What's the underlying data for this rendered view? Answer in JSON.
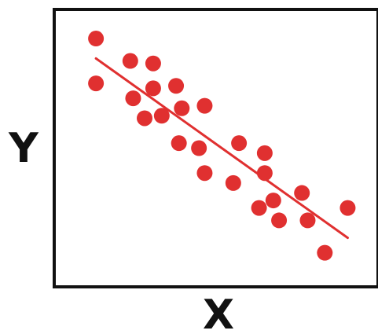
{
  "chart_data": {
    "type": "scatter",
    "title": "",
    "xlabel": "X",
    "ylabel": "Y",
    "xlim": [
      0,
      100
    ],
    "ylim": [
      0,
      100
    ],
    "grid": false,
    "points": [
      {
        "x": 8,
        "y": 94
      },
      {
        "x": 8,
        "y": 76
      },
      {
        "x": 20,
        "y": 85
      },
      {
        "x": 28,
        "y": 84
      },
      {
        "x": 28,
        "y": 74
      },
      {
        "x": 36,
        "y": 75
      },
      {
        "x": 21,
        "y": 70
      },
      {
        "x": 38,
        "y": 66
      },
      {
        "x": 46,
        "y": 67
      },
      {
        "x": 25,
        "y": 62
      },
      {
        "x": 31,
        "y": 63
      },
      {
        "x": 37,
        "y": 52
      },
      {
        "x": 44,
        "y": 50
      },
      {
        "x": 46,
        "y": 40
      },
      {
        "x": 58,
        "y": 52
      },
      {
        "x": 67,
        "y": 48
      },
      {
        "x": 56,
        "y": 36
      },
      {
        "x": 67,
        "y": 40
      },
      {
        "x": 70,
        "y": 29
      },
      {
        "x": 65,
        "y": 26
      },
      {
        "x": 80,
        "y": 32
      },
      {
        "x": 72,
        "y": 21
      },
      {
        "x": 82,
        "y": 21
      },
      {
        "x": 88,
        "y": 8
      },
      {
        "x": 96,
        "y": 26
      }
    ],
    "trendline": {
      "x1": 8,
      "y1": 86,
      "x2": 96,
      "y2": 14
    },
    "colors": {
      "points": "#e03030",
      "trendline": "#e03030",
      "axes": "#111111"
    }
  }
}
